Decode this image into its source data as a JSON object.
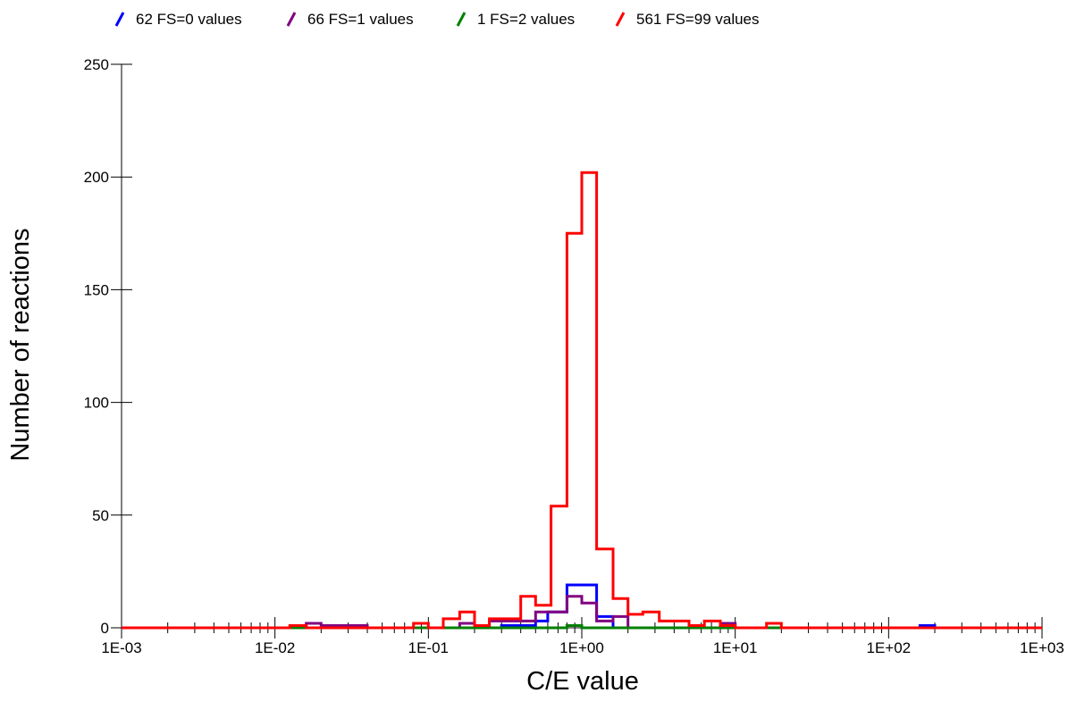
{
  "chart_data": {
    "type": "line",
    "step": true,
    "xlabel": "C/E value",
    "ylabel": "Number of reactions",
    "x_scale": "log",
    "xlim": [
      0.001,
      1000
    ],
    "ylim": [
      0,
      250
    ],
    "x_ticks": [
      "1E-03",
      "1E-02",
      "1E-01",
      "1E+00",
      "1E+01",
      "1E+02",
      "1E+03"
    ],
    "y_ticks": [
      0,
      50,
      100,
      150,
      200,
      250
    ],
    "grid": false,
    "legend": "top",
    "series": [
      {
        "name": "62 FS=0 values",
        "color": "#0000ff",
        "points": [
          [
            0.001,
            0
          ],
          [
            0.3,
            0
          ],
          [
            0.3,
            1
          ],
          [
            0.5,
            1
          ],
          [
            0.5,
            3
          ],
          [
            0.6,
            3
          ],
          [
            0.6,
            7
          ],
          [
            0.8,
            7
          ],
          [
            0.8,
            19
          ],
          [
            1.25,
            19
          ],
          [
            1.25,
            5
          ],
          [
            1.6,
            5
          ],
          [
            1.6,
            0
          ],
          [
            160,
            0
          ],
          [
            160,
            1
          ],
          [
            200,
            1
          ],
          [
            200,
            0
          ],
          [
            1000,
            0
          ]
        ]
      },
      {
        "name": "66 FS=1 values",
        "color": "#800080",
        "points": [
          [
            0.001,
            0
          ],
          [
            0.016,
            0
          ],
          [
            0.016,
            2
          ],
          [
            0.02,
            2
          ],
          [
            0.02,
            1
          ],
          [
            0.04,
            1
          ],
          [
            0.04,
            0
          ],
          [
            0.16,
            0
          ],
          [
            0.16,
            2
          ],
          [
            0.2,
            2
          ],
          [
            0.2,
            1
          ],
          [
            0.25,
            1
          ],
          [
            0.25,
            3
          ],
          [
            0.5,
            3
          ],
          [
            0.5,
            7
          ],
          [
            0.8,
            7
          ],
          [
            0.8,
            14
          ],
          [
            1.0,
            14
          ],
          [
            1.0,
            11
          ],
          [
            1.25,
            11
          ],
          [
            1.25,
            3
          ],
          [
            1.6,
            3
          ],
          [
            1.6,
            5
          ],
          [
            2.0,
            5
          ],
          [
            2.0,
            0
          ],
          [
            8.0,
            0
          ],
          [
            8.0,
            2
          ],
          [
            10.0,
            2
          ],
          [
            10.0,
            0
          ],
          [
            1000,
            0
          ]
        ]
      },
      {
        "name": "1 FS=2 values",
        "color": "#008000",
        "points": [
          [
            0.001,
            0
          ],
          [
            0.8,
            0
          ],
          [
            0.8,
            1
          ],
          [
            1.0,
            1
          ],
          [
            1.0,
            0
          ],
          [
            1000,
            0
          ]
        ]
      },
      {
        "name": "561 FS=99 values",
        "color": "#ff0000",
        "points": [
          [
            0.001,
            0
          ],
          [
            0.0125,
            0
          ],
          [
            0.0125,
            1
          ],
          [
            0.016,
            1
          ],
          [
            0.016,
            0
          ],
          [
            0.08,
            0
          ],
          [
            0.08,
            2
          ],
          [
            0.1,
            2
          ],
          [
            0.1,
            0
          ],
          [
            0.125,
            0
          ],
          [
            0.125,
            4
          ],
          [
            0.16,
            4
          ],
          [
            0.16,
            7
          ],
          [
            0.2,
            7
          ],
          [
            0.2,
            1
          ],
          [
            0.25,
            1
          ],
          [
            0.25,
            4
          ],
          [
            0.4,
            4
          ],
          [
            0.4,
            14
          ],
          [
            0.5,
            14
          ],
          [
            0.5,
            10
          ],
          [
            0.63,
            10
          ],
          [
            0.63,
            54
          ],
          [
            0.8,
            54
          ],
          [
            0.8,
            175
          ],
          [
            1.0,
            175
          ],
          [
            1.0,
            202
          ],
          [
            1.25,
            202
          ],
          [
            1.25,
            35
          ],
          [
            1.6,
            35
          ],
          [
            1.6,
            13
          ],
          [
            2.0,
            13
          ],
          [
            2.0,
            6
          ],
          [
            2.5,
            6
          ],
          [
            2.5,
            7
          ],
          [
            3.2,
            7
          ],
          [
            3.2,
            3
          ],
          [
            5.0,
            3
          ],
          [
            5.0,
            1
          ],
          [
            6.3,
            1
          ],
          [
            6.3,
            3
          ],
          [
            8.0,
            3
          ],
          [
            8.0,
            1
          ],
          [
            10.0,
            1
          ],
          [
            10.0,
            0
          ],
          [
            16.0,
            0
          ],
          [
            16.0,
            2
          ],
          [
            20.0,
            2
          ],
          [
            20.0,
            0
          ],
          [
            1000,
            0
          ]
        ]
      }
    ]
  }
}
